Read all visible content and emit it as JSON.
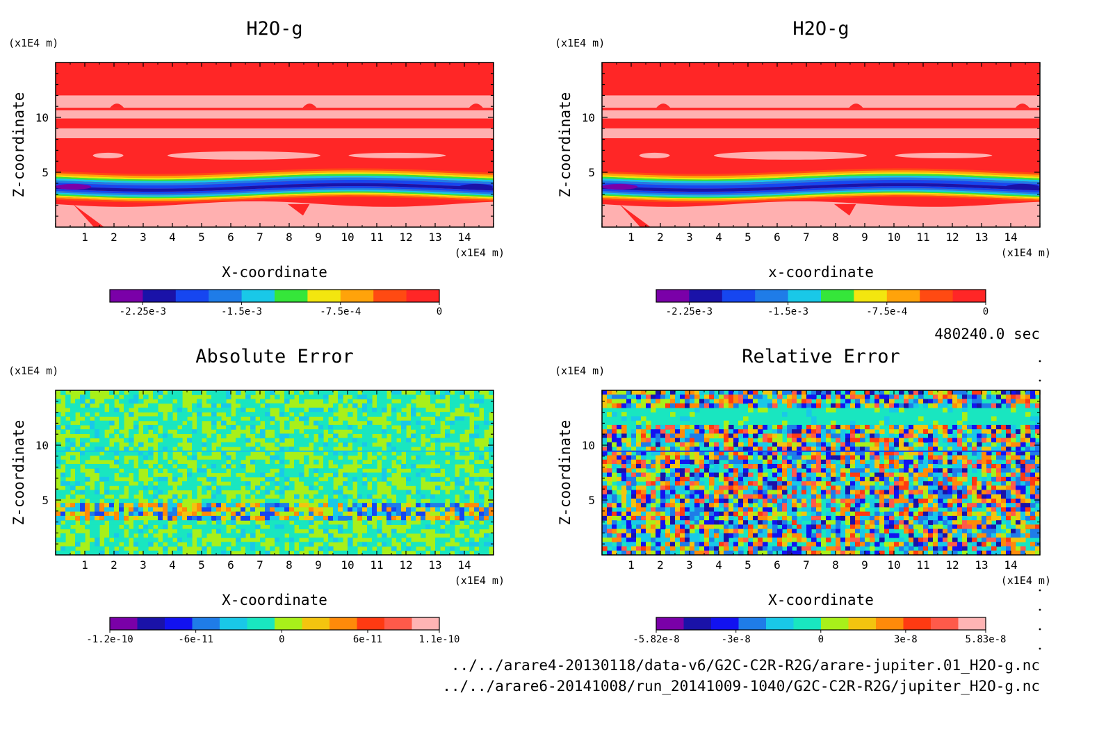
{
  "chart_data": [
    {
      "type": "heatmap",
      "title": "H2O-g",
      "xlabel": "X-coordinate",
      "ylabel": "Z-coordinate",
      "x_unit": "(x1E4 m)",
      "y_unit": "(x1E4 m)",
      "xlim": [
        0,
        15
      ],
      "ylim": [
        0,
        15
      ],
      "x_ticks": [
        "1",
        "2",
        "3",
        "4",
        "5",
        "6",
        "7",
        "8",
        "9",
        "10",
        "11",
        "12",
        "13",
        "14"
      ],
      "y_ticks": [
        "5",
        "10"
      ],
      "field": "smooth",
      "colorbar": {
        "colors": [
          "#7a00a8",
          "#1a12a8",
          "#1646f0",
          "#1f7ce8",
          "#19c8e8",
          "#35e63a",
          "#f3e60f",
          "#ffa30a",
          "#ff4a12",
          "#ff2626"
        ],
        "tick_labels": [
          "-2.25e-3",
          "-1.5e-3",
          "-7.5e-4",
          "0"
        ],
        "min": -0.0025,
        "max": 0
      }
    },
    {
      "type": "heatmap",
      "title": "H2O-g",
      "xlabel": "x-coordinate",
      "ylabel": "Z-coordinate",
      "x_unit": "(x1E4 m)",
      "y_unit": "(x1E4 m)",
      "xlim": [
        0,
        15
      ],
      "ylim": [
        0,
        15
      ],
      "x_ticks": [
        "1",
        "2",
        "3",
        "4",
        "5",
        "6",
        "7",
        "8",
        "9",
        "10",
        "11",
        "12",
        "13",
        "14"
      ],
      "y_ticks": [
        "5",
        "10"
      ],
      "field": "smooth",
      "colorbar": {
        "colors": [
          "#7a00a8",
          "#1a12a8",
          "#1646f0",
          "#1f7ce8",
          "#19c8e8",
          "#35e63a",
          "#f3e60f",
          "#ffa30a",
          "#ff4a12",
          "#ff2626"
        ],
        "tick_labels": [
          "-2.25e-3",
          "-1.5e-3",
          "-7.5e-4",
          "0"
        ],
        "min": -0.0025,
        "max": 0
      }
    },
    {
      "type": "heatmap",
      "title": "Absolute Error",
      "xlabel": "X-coordinate",
      "ylabel": "Z-coordinate",
      "x_unit": "(x1E4 m)",
      "y_unit": "(x1E4 m)",
      "xlim": [
        0,
        15
      ],
      "ylim": [
        0,
        15
      ],
      "x_ticks": [
        "1",
        "2",
        "3",
        "4",
        "5",
        "6",
        "7",
        "8",
        "9",
        "10",
        "11",
        "12",
        "13",
        "14"
      ],
      "y_ticks": [
        "5",
        "10"
      ],
      "field": "noise-low",
      "colorbar": {
        "colors": [
          "#7a00a8",
          "#1a12a8",
          "#1212f0",
          "#1f7ce8",
          "#19c8e8",
          "#19e6c0",
          "#a8f01a",
          "#f3c40f",
          "#ff8a0a",
          "#ff3a12",
          "#ff5a4a",
          "#ffb4b4"
        ],
        "tick_labels": [
          "-1.2e-10",
          "-6e-11",
          "0",
          "6e-11",
          "1.1e-10"
        ],
        "min": -1.2e-10,
        "max": 1.1e-10
      }
    },
    {
      "type": "heatmap",
      "title": "Relative Error",
      "xlabel": "X-coordinate",
      "ylabel": "Z-coordinate",
      "x_unit": "(x1E4 m)",
      "y_unit": "(x1E4 m)",
      "xlim": [
        0,
        15
      ],
      "ylim": [
        0,
        15
      ],
      "x_ticks": [
        "1",
        "2",
        "3",
        "4",
        "5",
        "6",
        "7",
        "8",
        "9",
        "10",
        "11",
        "12",
        "13",
        "14"
      ],
      "y_ticks": [
        "5",
        "10"
      ],
      "field": "noise-high",
      "colorbar": {
        "colors": [
          "#7a00a8",
          "#1a12a8",
          "#1212f0",
          "#1f7ce8",
          "#19c8e8",
          "#19e6c0",
          "#a8f01a",
          "#f3c40f",
          "#ff8a0a",
          "#ff3a12",
          "#ff5a4a",
          "#ffb4b4"
        ],
        "tick_labels": [
          "-5.82e-8",
          "-3e-8",
          "0",
          "3e-8",
          "5.83e-8"
        ],
        "min": -5.82e-08,
        "max": 5.83e-08
      }
    }
  ],
  "time_label": "480240.0 sec",
  "footer": {
    "file1": "../../arare4-20130118/data-v6/G2C-C2R-R2G/arare-jupiter.01_H2O-g.nc",
    "file2": "../../arare6-20141008/run_20141009-1040/G2C-C2R-R2G/jupiter_H2O-g.nc"
  }
}
